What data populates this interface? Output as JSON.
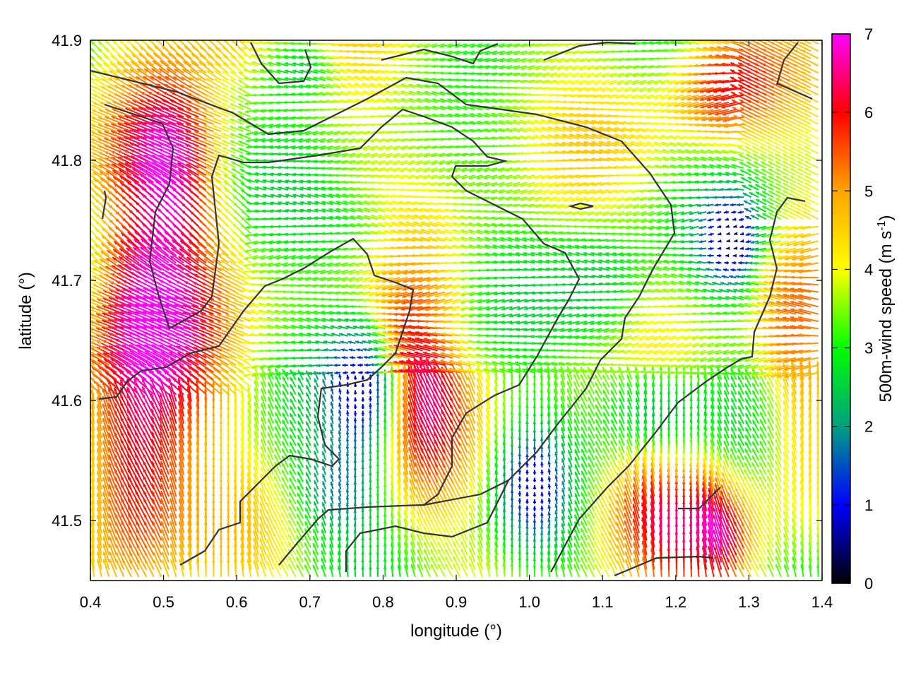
{
  "chart_data": {
    "type": "vector-field",
    "xlabel": "longitude (°)",
    "ylabel": "latitude (°)",
    "colorbar_label": "500m-wind speed (m s",
    "colorbar_label_sup": "-1",
    "colorbar_label_close": ")",
    "xlim": [
      0.4,
      1.4
    ],
    "ylim": [
      41.45,
      41.9
    ],
    "xticks": [
      "0.4",
      "0.5",
      "0.6",
      "0.7",
      "0.8",
      "0.9",
      "1.0",
      "1.1",
      "1.2",
      "1.3",
      "1.4"
    ],
    "yticks": [
      "41.5",
      "41.6",
      "41.7",
      "41.8",
      "41.9"
    ],
    "colorbar_ticks": [
      "0",
      "1",
      "2",
      "3",
      "4",
      "5",
      "6",
      "7"
    ],
    "colorbar_range": [
      0,
      7
    ],
    "colormap": [
      "#000000",
      "#0000ff",
      "#00a080",
      "#00ff00",
      "#ffff00",
      "#ffa500",
      "#ff0000",
      "#ff00ff"
    ],
    "contour_color": "#333333"
  }
}
